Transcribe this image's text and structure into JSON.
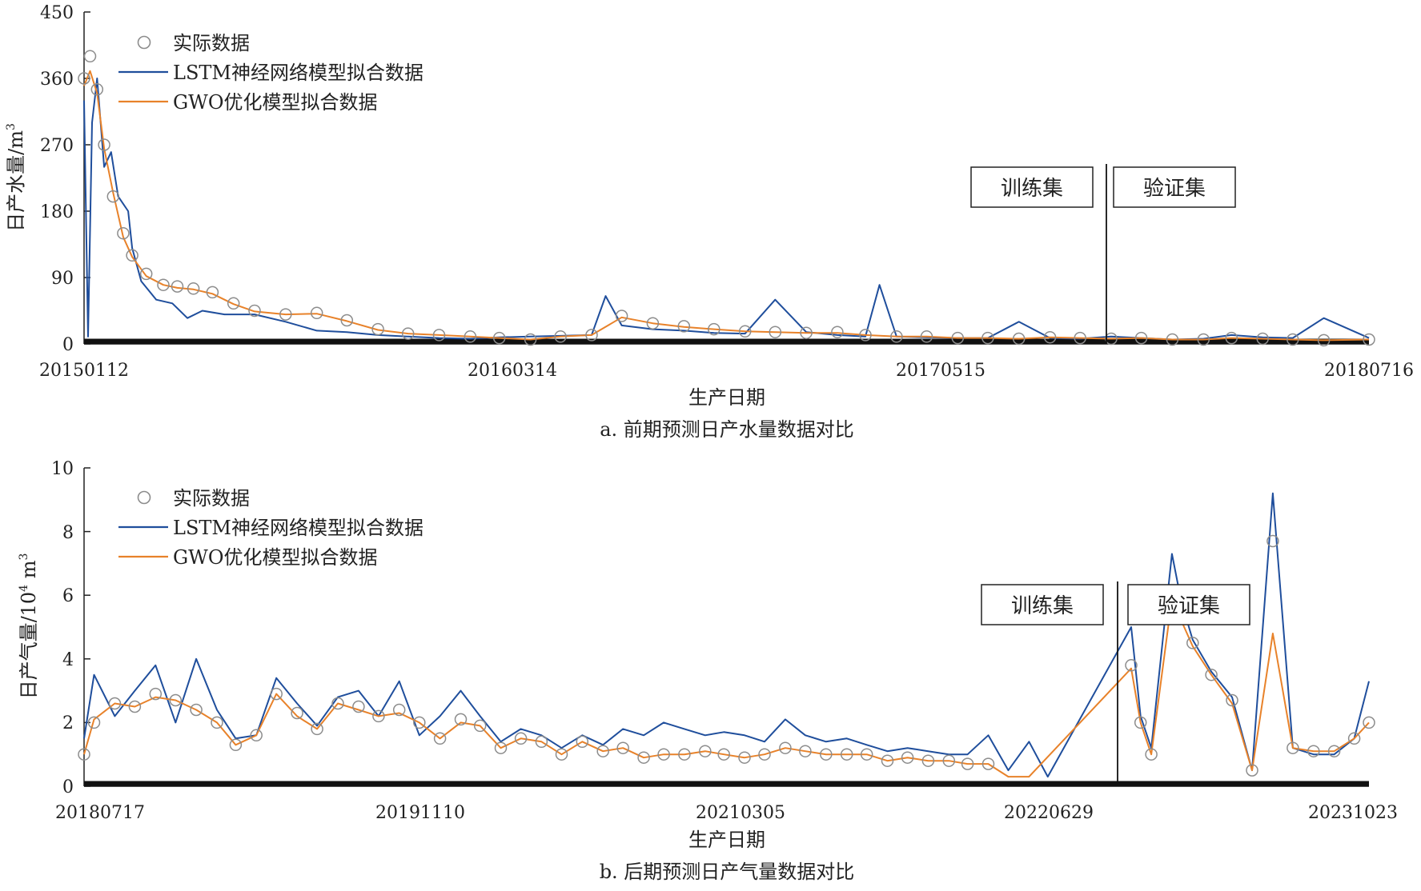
{
  "colors": {
    "actual": "#8c8c8c",
    "lstm": "#1f4e9c",
    "gwo": "#e8822a",
    "axis": "#222222",
    "baseline": "#111111"
  },
  "chart_data": [
    {
      "type": "line",
      "caption": "a. 前期预测日产水量数据对比",
      "xlabel": "生产日期",
      "ylabel": "日产水量/m",
      "ylabel_sup": "3",
      "ylim": [
        0,
        450
      ],
      "yticks": [
        "0",
        "90",
        "180",
        "270",
        "360",
        "450"
      ],
      "x_range": [
        "20150112",
        "20180716"
      ],
      "xticks": [
        "20150112",
        "20160314",
        "20170515",
        "20180716"
      ],
      "split_date": "20171101",
      "split_labels": {
        "train": "训练集",
        "validation": "验证集"
      },
      "legend": [
        "实际数据",
        "LSTM神经网络模型拟合数据",
        "GWO优化模型拟合数据"
      ],
      "legend_position": "top-left",
      "grid": false,
      "series": [
        {
          "name": "实际数据",
          "style": "markers",
          "x": [
            "20150112",
            "20150118",
            "20150125",
            "20150201",
            "20150210",
            "20150220",
            "20150301",
            "20150315",
            "20150401",
            "20150415",
            "20150501",
            "20150520",
            "20150610",
            "20150701",
            "20150801",
            "20150901",
            "20151001",
            "20151101",
            "20151201",
            "20160101",
            "20160201",
            "20160301",
            "20160401",
            "20160501",
            "20160601",
            "20160701",
            "20160801",
            "20160901",
            "20161001",
            "20161101",
            "20161201",
            "20170101",
            "20170201",
            "20170301",
            "20170401",
            "20170501",
            "20170601",
            "20170701",
            "20170801",
            "20170901",
            "20171001",
            "20171101",
            "20171201",
            "20180101",
            "20180201",
            "20180301",
            "20180401",
            "20180501",
            "20180601",
            "20180716"
          ],
          "y": [
            360,
            390,
            345,
            270,
            200,
            150,
            120,
            95,
            80,
            78,
            75,
            70,
            55,
            45,
            40,
            42,
            32,
            20,
            14,
            12,
            10,
            8,
            6,
            10,
            12,
            38,
            28,
            24,
            20,
            17,
            16,
            15,
            16,
            12,
            10,
            10,
            8,
            8,
            7,
            9,
            8,
            7,
            8,
            6,
            6,
            8,
            7,
            6,
            5,
            6
          ]
        },
        {
          "name": "LSTM神经网络模型拟合数据",
          "style": "line",
          "x": [
            "20150112",
            "20150116",
            "20150120",
            "20150125",
            "20150201",
            "20150208",
            "20150215",
            "20150225",
            "20150301",
            "20150310",
            "20150325",
            "20150410",
            "20150425",
            "20150510",
            "20150601",
            "20150701",
            "20150801",
            "20150901",
            "20151001",
            "20151101",
            "20151201",
            "20160101",
            "20160201",
            "20160301",
            "20160401",
            "20160501",
            "20160601",
            "20160615",
            "20160701",
            "20160801",
            "20160901",
            "20161001",
            "20161101",
            "20161201",
            "20170101",
            "20170201",
            "20170301",
            "20170315",
            "20170401",
            "20170501",
            "20170601",
            "20170701",
            "20170801",
            "20170901",
            "20171001",
            "20171101",
            "20171201",
            "20180101",
            "20180201",
            "20180301",
            "20180401",
            "20180501",
            "20180601",
            "20180716"
          ],
          "y": [
            330,
            10,
            300,
            360,
            240,
            260,
            200,
            180,
            130,
            85,
            60,
            55,
            35,
            45,
            40,
            40,
            30,
            18,
            16,
            12,
            10,
            8,
            7,
            9,
            10,
            11,
            12,
            65,
            25,
            20,
            18,
            15,
            14,
            60,
            16,
            12,
            10,
            80,
            10,
            9,
            8,
            8,
            30,
            8,
            7,
            10,
            8,
            6,
            7,
            12,
            9,
            8,
            35,
            8
          ]
        },
        {
          "name": "GWO优化模型拟合数据",
          "style": "line",
          "x": [
            "20150112",
            "20150118",
            "20150125",
            "20150201",
            "20150210",
            "20150220",
            "20150301",
            "20150315",
            "20150401",
            "20150415",
            "20150501",
            "20150520",
            "20150610",
            "20150701",
            "20150801",
            "20150901",
            "20151001",
            "20151101",
            "20151201",
            "20160101",
            "20160201",
            "20160301",
            "20160401",
            "20160501",
            "20160601",
            "20160701",
            "20160801",
            "20160901",
            "20161001",
            "20161101",
            "20161201",
            "20170101",
            "20170201",
            "20170301",
            "20170401",
            "20170501",
            "20170601",
            "20170701",
            "20170801",
            "20170901",
            "20171001",
            "20171101",
            "20171201",
            "20180101",
            "20180201",
            "20180301",
            "20180401",
            "20180501",
            "20180601",
            "20180716"
          ],
          "y": [
            350,
            370,
            340,
            265,
            205,
            145,
            118,
            92,
            80,
            76,
            74,
            68,
            54,
            44,
            40,
            41,
            31,
            19,
            14,
            12,
            10,
            8,
            6,
            10,
            12,
            36,
            28,
            23,
            20,
            17,
            16,
            15,
            15,
            12,
            10,
            10,
            8,
            8,
            7,
            9,
            8,
            7,
            8,
            6,
            6,
            8,
            7,
            6,
            5,
            6
          ]
        }
      ]
    },
    {
      "type": "line",
      "caption": "b. 后期预测日产气量数据对比",
      "xlabel": "生产日期",
      "ylabel": "日产气量/10",
      "ylabel_sup": "4",
      "ylabel_unit": " m",
      "ylabel_unit_sup": "3",
      "ylim": [
        0,
        10
      ],
      "yticks": [
        "0",
        "2",
        "4",
        "6",
        "8",
        "10"
      ],
      "x_range": [
        "20180717",
        "20231023"
      ],
      "xticks": [
        "20180717",
        "20191110",
        "20210305",
        "20220629",
        "20231023"
      ],
      "split_date": "20221001",
      "split_labels": {
        "train": "训练集",
        "validation": "验证集"
      },
      "legend": [
        "实际数据",
        "LSTM神经网络模型拟合数据",
        "GWO优化模型拟合数据"
      ],
      "legend_position": "top-left",
      "grid": false,
      "series": [
        {
          "name": "实际数据",
          "style": "markers",
          "x": [
            "20180717",
            "20180801",
            "20180901",
            "20181001",
            "20181101",
            "20181201",
            "20190101",
            "20190201",
            "20190301",
            "20190401",
            "20190501",
            "20190601",
            "20190701",
            "20190801",
            "20190901",
            "20191001",
            "20191101",
            "20191201",
            "20200101",
            "20200201",
            "20200301",
            "20200401",
            "20200501",
            "20200601",
            "20200701",
            "20200801",
            "20200901",
            "20201001",
            "20201101",
            "20201201",
            "20210101",
            "20210201",
            "20210301",
            "20210401",
            "20210501",
            "20210601",
            "20210701",
            "20210801",
            "20210901",
            "20211001",
            "20211101",
            "20211201",
            "20220101",
            "20220201",
            "20220301",
            "20220401",
            "20221101",
            "20221115",
            "20221201",
            "20230101",
            "20230115",
            "20230201",
            "20230301",
            "20230401",
            "20230501",
            "20230601",
            "20230701",
            "20230801",
            "20230901",
            "20231001",
            "20231023"
          ],
          "y": [
            1.0,
            2.0,
            2.6,
            2.5,
            2.9,
            2.7,
            2.4,
            2.0,
            1.3,
            1.6,
            2.9,
            2.3,
            1.8,
            2.6,
            2.5,
            2.2,
            2.4,
            2.0,
            1.5,
            2.1,
            1.9,
            1.2,
            1.5,
            1.4,
            1.0,
            1.4,
            1.1,
            1.2,
            0.9,
            1.0,
            1.0,
            1.1,
            1.0,
            0.9,
            1.0,
            1.2,
            1.1,
            1.0,
            1.0,
            1.0,
            0.8,
            0.9,
            0.8,
            0.8,
            0.7,
            0.7,
            3.8,
            2.0,
            1.0,
            6.0,
            5.3,
            4.5,
            3.5,
            2.7,
            0.5,
            7.7,
            1.2,
            1.1,
            1.1,
            1.5,
            2.0
          ]
        },
        {
          "name": "LSTM神经网络模型拟合数据",
          "style": "line",
          "x": [
            "20180717",
            "20180801",
            "20180901",
            "20181001",
            "20181101",
            "20181201",
            "20190101",
            "20190201",
            "20190301",
            "20190401",
            "20190501",
            "20190601",
            "20190701",
            "20190801",
            "20190901",
            "20191001",
            "20191101",
            "20191201",
            "20200101",
            "20200201",
            "20200301",
            "20200401",
            "20200501",
            "20200601",
            "20200701",
            "20200801",
            "20200901",
            "20201001",
            "20201101",
            "20201201",
            "20210101",
            "20210201",
            "20210301",
            "20210401",
            "20210501",
            "20210601",
            "20210701",
            "20210801",
            "20210901",
            "20211001",
            "20211101",
            "20211201",
            "20220101",
            "20220201",
            "20220301",
            "20220401",
            "20220501",
            "20220601",
            "20220629",
            "20221101",
            "20221115",
            "20221201",
            "20230101",
            "20230115",
            "20230201",
            "20230301",
            "20230401",
            "20230501",
            "20230601",
            "20230701",
            "20230801",
            "20230901",
            "20231001",
            "20231023"
          ],
          "y": [
            1.5,
            3.5,
            2.2,
            3.0,
            3.8,
            2.0,
            4.0,
            2.4,
            1.5,
            1.6,
            3.4,
            2.6,
            1.9,
            2.8,
            3.0,
            2.2,
            3.3,
            1.6,
            2.2,
            3.0,
            2.2,
            1.4,
            1.8,
            1.6,
            1.2,
            1.6,
            1.3,
            1.8,
            1.6,
            2.0,
            1.8,
            1.6,
            1.7,
            1.6,
            1.4,
            2.1,
            1.6,
            1.4,
            1.5,
            1.3,
            1.1,
            1.2,
            1.1,
            1.0,
            1.0,
            1.6,
            0.5,
            1.4,
            0.3,
            5.0,
            2.2,
            1.2,
            7.3,
            5.8,
            4.6,
            3.6,
            2.8,
            0.5,
            9.2,
            1.2,
            1.0,
            1.0,
            1.5,
            3.3
          ]
        },
        {
          "name": "GWO优化模型拟合数据",
          "style": "line",
          "x": [
            "20180717",
            "20180801",
            "20180901",
            "20181001",
            "20181101",
            "20181201",
            "20190101",
            "20190201",
            "20190301",
            "20190401",
            "20190501",
            "20190601",
            "20190701",
            "20190801",
            "20190901",
            "20191001",
            "20191101",
            "20191201",
            "20200101",
            "20200201",
            "20200301",
            "20200401",
            "20200501",
            "20200601",
            "20200701",
            "20200801",
            "20200901",
            "20201001",
            "20201101",
            "20201201",
            "20210101",
            "20210201",
            "20210301",
            "20210401",
            "20210501",
            "20210601",
            "20210701",
            "20210801",
            "20210901",
            "20211001",
            "20211101",
            "20211201",
            "20220101",
            "20220201",
            "20220301",
            "20220401",
            "20220501",
            "20220601",
            "20221101",
            "20221115",
            "20221201",
            "20230101",
            "20230115",
            "20230201",
            "20230301",
            "20230401",
            "20230501",
            "20230601",
            "20230701",
            "20230801",
            "20230901",
            "20231001",
            "20231023"
          ],
          "y": [
            1.0,
            2.1,
            2.6,
            2.5,
            2.8,
            2.7,
            2.4,
            2.0,
            1.3,
            1.6,
            2.9,
            2.2,
            1.8,
            2.6,
            2.4,
            2.2,
            2.3,
            2.0,
            1.5,
            2.0,
            1.9,
            1.2,
            1.5,
            1.4,
            1.0,
            1.4,
            1.1,
            1.2,
            0.9,
            1.0,
            1.0,
            1.1,
            1.0,
            0.9,
            1.0,
            1.2,
            1.1,
            1.0,
            1.0,
            1.0,
            0.8,
            0.9,
            0.8,
            0.8,
            0.7,
            0.7,
            0.3,
            0.3,
            3.7,
            2.0,
            1.0,
            5.9,
            5.2,
            4.4,
            3.5,
            2.6,
            0.5,
            4.8,
            1.2,
            1.1,
            1.1,
            1.5,
            2.0
          ]
        }
      ]
    }
  ]
}
